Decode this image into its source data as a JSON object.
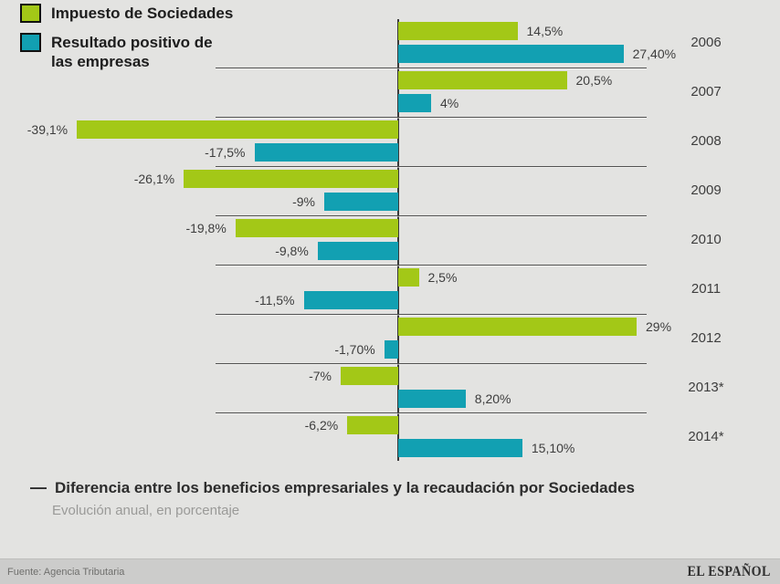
{
  "legend": {
    "items": [
      {
        "label_lines": [
          "Impuesto de Sociedades"
        ],
        "color": "#a3c817"
      },
      {
        "label_lines": [
          "Resultado positivo de",
          "las empresas"
        ],
        "color": "#12a0b2"
      }
    ]
  },
  "chart_data": {
    "type": "bar",
    "orientation": "horizontal",
    "categories": [
      "2006",
      "2007",
      "2008",
      "2009",
      "2010",
      "2011",
      "2012",
      "2013*",
      "2014*"
    ],
    "series": [
      {
        "name": "Impuesto de Sociedades",
        "color": "#a3c817",
        "values": [
          14.5,
          20.5,
          -39.1,
          -26.1,
          -19.8,
          2.5,
          29,
          -7,
          -6.2
        ],
        "labels": [
          "14,5%",
          "20,5%",
          "-39,1%",
          "-26,1%",
          "-19,8%",
          "2,5%",
          "29%",
          "-7%",
          "-6,2%"
        ]
      },
      {
        "name": "Resultado positivo de las empresas",
        "color": "#12a0b2",
        "values": [
          27.4,
          4,
          -17.5,
          -9,
          -9.8,
          -11.5,
          -1.7,
          8.2,
          15.1
        ],
        "labels": [
          "27,40%",
          "4%",
          "-17,5%",
          "-9%",
          "-9,8%",
          "-11,5%",
          "-1,70%",
          "8,20%",
          "15,10%"
        ]
      }
    ],
    "title": "Diferencia entre los beneficios empresariales y la recaudación por Sociedades",
    "subtitle": "Evolución anual, en porcentaje",
    "xlim": [
      -40,
      30
    ],
    "unit": "%",
    "grid": "row-separators",
    "legend_position": "top-left"
  },
  "title_block": {
    "dash": "—",
    "title": "Diferencia entre los beneficios empresariales y la recaudación por Sociedades",
    "subtitle": "Evolución anual, en porcentaje"
  },
  "footer": {
    "source": "Fuente: Agencia Tributaria",
    "brand": "EL ESPAÑOL"
  },
  "colors": {
    "green": "#a3c817",
    "teal": "#12a0b2",
    "background": "#e3e3e1",
    "footer_background": "#cccccb",
    "axis": "#3a3a3a",
    "separator": "#525252",
    "text": "#3d3d3d",
    "subtitle_text": "#9a9a98"
  }
}
